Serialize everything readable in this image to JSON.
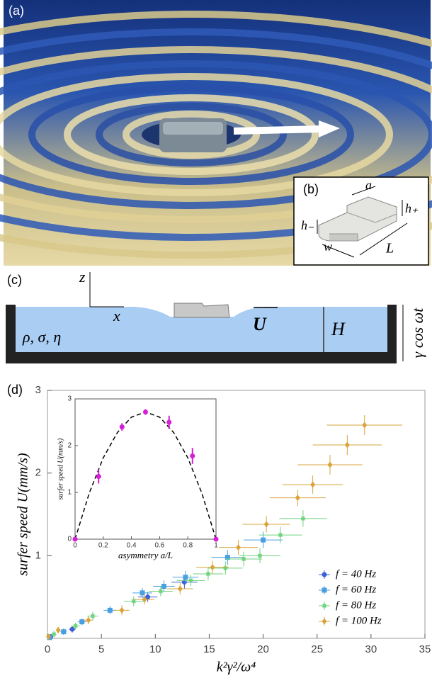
{
  "panels": {
    "a": {
      "label": "(a)"
    },
    "b": {
      "label": "(b)",
      "a": "a",
      "h_plus": "h₊",
      "h_minus": "h₋",
      "w": "w",
      "L": "L"
    },
    "c": {
      "label": "(c)",
      "z": "z",
      "x": "x",
      "U": "U",
      "H": "H",
      "params": "ρ, σ, η",
      "forcing": "γ cos ωt"
    },
    "d": {
      "label": "(d)"
    }
  },
  "chart_data": [
    {
      "type": "scatter",
      "xlabel": "k²γ²/ω⁴",
      "ylabel": "surfer speed  U(mm/s)",
      "xlim": [
        0,
        35
      ],
      "xticks": [
        0,
        5,
        10,
        15,
        20,
        25,
        30,
        35
      ],
      "ylim": [
        0,
        3
      ],
      "yticks": [
        1,
        2,
        3
      ],
      "legend": "lower right",
      "series": [
        {
          "name": "f = 40 Hz",
          "color": "#3d5fd9",
          "marker": "o",
          "x": [
            0.3,
            2.3,
            9.3,
            12.7
          ],
          "values": [
            0.02,
            0.11,
            0.5,
            0.68
          ],
          "xerr": [
            0.2,
            0.3,
            0.9,
            1.2
          ],
          "yerr": [
            0.03,
            0.04,
            0.06,
            0.08
          ]
        },
        {
          "name": "f = 60 Hz",
          "color": "#4a9fe0",
          "marker": "s",
          "x": [
            0.2,
            1.5,
            3.2,
            5.8,
            8.8,
            10.8,
            12.8,
            16.7,
            20.0
          ],
          "values": [
            0.01,
            0.08,
            0.2,
            0.34,
            0.55,
            0.63,
            0.74,
            0.98,
            1.19
          ],
          "xerr": [
            0.2,
            0.3,
            0.4,
            0.6,
            0.9,
            1.0,
            1.2,
            1.5,
            1.8
          ],
          "yerr": [
            0.03,
            0.04,
            0.04,
            0.05,
            0.06,
            0.07,
            0.08,
            0.09,
            0.1
          ]
        },
        {
          "name": "f = 80 Hz",
          "color": "#6fd27d",
          "marker": "*",
          "x": [
            0.6,
            2.6,
            4.2,
            8.0,
            10.5,
            13.3,
            14.9,
            16.5,
            18.2,
            19.7,
            21.6,
            23.7
          ],
          "values": [
            0.05,
            0.15,
            0.27,
            0.45,
            0.57,
            0.7,
            0.78,
            0.85,
            0.96,
            1.0,
            1.25,
            1.45
          ],
          "xerr": [
            0.2,
            0.4,
            0.5,
            0.9,
            1.1,
            1.3,
            1.4,
            1.6,
            1.7,
            1.9,
            2.0,
            2.2
          ],
          "yerr": [
            0.04,
            0.04,
            0.05,
            0.06,
            0.06,
            0.07,
            0.08,
            0.08,
            0.09,
            0.09,
            0.1,
            0.1
          ]
        },
        {
          "name": "f = 100 Hz",
          "color": "#d9a43c",
          "marker": "d",
          "x": [
            0.1,
            1.0,
            3.8,
            6.9,
            9.0,
            12.3,
            15.3,
            17.7,
            20.3,
            23.2,
            24.6,
            26.2,
            27.8,
            29.4
          ],
          "values": [
            0.02,
            0.1,
            0.22,
            0.34,
            0.47,
            0.6,
            0.86,
            1.1,
            1.38,
            1.7,
            1.86,
            2.1,
            2.34,
            2.58
          ],
          "xerr": [
            0.1,
            0.2,
            0.4,
            0.7,
            0.9,
            1.2,
            1.5,
            1.8,
            2.2,
            2.6,
            2.8,
            3.0,
            3.2,
            3.5
          ],
          "yerr": [
            0.03,
            0.04,
            0.05,
            0.06,
            0.06,
            0.07,
            0.08,
            0.09,
            0.1,
            0.1,
            0.11,
            0.12,
            0.12,
            0.12
          ]
        }
      ]
    },
    {
      "type": "scatter",
      "xlabel": "asymmetry  a/L",
      "ylabel": "surfer speed  U(mm/s)",
      "xlim": [
        0,
        1
      ],
      "xticks": [
        0,
        0.2,
        0.4,
        0.6,
        0.8,
        1
      ],
      "ylim": [
        0,
        3
      ],
      "yticks": [
        0,
        1,
        2,
        3
      ],
      "series": [
        {
          "color": "#d61ed6",
          "marker": "o",
          "x": [
            0,
            0.167,
            0.333,
            0.5,
            0.667,
            0.833,
            1
          ],
          "values": [
            0,
            1.34,
            2.4,
            2.72,
            2.5,
            1.78,
            0
          ],
          "yerr": [
            0,
            0.15,
            0.08,
            0.06,
            0.14,
            0.17,
            0
          ]
        }
      ],
      "fit": {
        "color": "#000000",
        "dashed": true,
        "x": [
          0,
          0.1,
          0.2,
          0.3,
          0.4,
          0.5,
          0.6,
          0.7,
          0.8,
          0.9,
          1
        ],
        "values": [
          0,
          0.98,
          1.74,
          2.28,
          2.61,
          2.72,
          2.61,
          2.28,
          1.74,
          0.98,
          0
        ]
      }
    }
  ]
}
